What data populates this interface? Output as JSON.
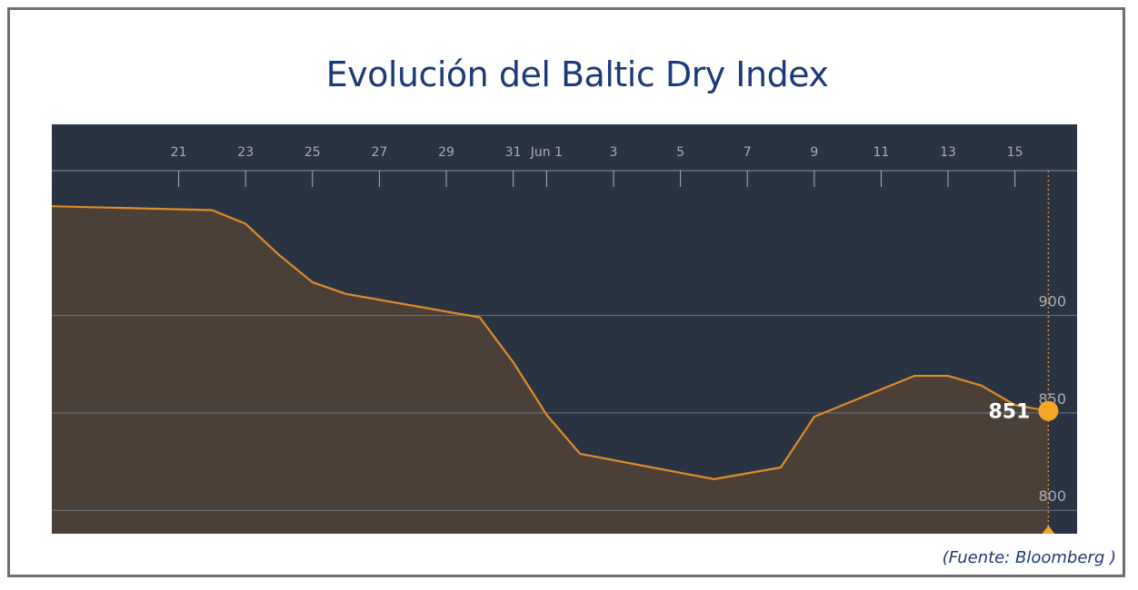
{
  "title": "Evolución del Baltic Dry Index",
  "source": "(Fuente: Bloomberg )",
  "chart_data": {
    "type": "area",
    "title": "Evolución del Baltic Dry Index",
    "x_ticks": [
      "21",
      "23",
      "25",
      "27",
      "29",
      "31",
      "Jun 1",
      "3",
      "5",
      "7",
      "9",
      "11",
      "13",
      "15"
    ],
    "y_ticks": [
      "900",
      "850",
      "800"
    ],
    "ylim": [
      788,
      998
    ],
    "grid": true,
    "series": [
      {
        "x": [
          "May 19",
          "May 22",
          "May 23",
          "May 24",
          "May 25",
          "May 26",
          "May 30",
          "May 31",
          "Jun 1",
          "Jun 2",
          "Jun 6",
          "Jun 8",
          "Jun 9",
          "Jun 12",
          "Jun 13",
          "Jun 14",
          "Jun 15",
          "Jun 16"
        ],
        "values": [
          956,
          954,
          947,
          931,
          917,
          911,
          899,
          876,
          849,
          829,
          816,
          822,
          848,
          869,
          869,
          864,
          854,
          851
        ]
      }
    ],
    "last_value_label": "851",
    "colors": {
      "background": "#2a3341",
      "line": "#e08a2a",
      "fill": "#4a4038",
      "marker": "#f5a623",
      "grid": "#6c7380",
      "ticks": "#a9aeb6"
    }
  }
}
